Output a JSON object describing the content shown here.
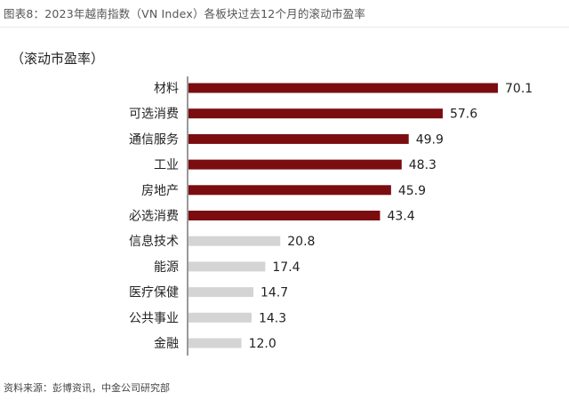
{
  "header": {
    "figure_title": "图表8：2023年越南指数（VN Index）各板块过去12个月的滚动市盈率"
  },
  "footer": {
    "source": "资料来源：彭博资讯，中金公司研究部"
  },
  "chart_data": {
    "type": "bar",
    "orientation": "horizontal",
    "title": "",
    "unit_label": "（滚动市盈率）",
    "categories": [
      "材料",
      "可选消费",
      "通信服务",
      "工业",
      "房地产",
      "必选消费",
      "信息技术",
      "能源",
      "医疗保健",
      "公共事业",
      "金融"
    ],
    "values": [
      70.1,
      57.6,
      49.9,
      48.3,
      45.9,
      43.4,
      20.8,
      17.4,
      14.7,
      14.3,
      12.0
    ],
    "value_labels": [
      "70.1",
      "57.6",
      "49.9",
      "48.3",
      "45.9",
      "43.4",
      "20.8",
      "17.4",
      "14.7",
      "14.3",
      "12.0"
    ],
    "colors": [
      "#7b0c10",
      "#7b0c10",
      "#7b0c10",
      "#7b0c10",
      "#7b0c10",
      "#7b0c10",
      "#d4d4d4",
      "#d4d4d4",
      "#d4d4d4",
      "#d4d4d4",
      "#d4d4d4"
    ],
    "xlim": [
      0,
      75
    ],
    "grid": false,
    "legend": "none"
  }
}
